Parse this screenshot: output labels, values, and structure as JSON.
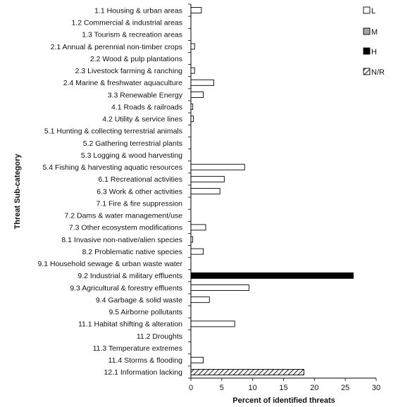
{
  "chart_data": {
    "type": "bar",
    "orientation": "horizontal",
    "xlabel": "Percent of identified threats",
    "ylabel": "Threat Sub-category",
    "xlim": [
      0,
      30
    ],
    "xticks": [
      "0",
      "5",
      "10",
      "15",
      "20",
      "25",
      "30"
    ],
    "grid": false,
    "legend_position": "right",
    "categories": [
      "1.1 Housing & urban areas",
      "1.2 Commercial & industrial areas",
      "1.3 Tourism & recreation areas",
      "2.1 Annual & perennial non-timber crops",
      "2.2 Wood & pulp plantations",
      "2.3 Livestock farming & ranching",
      "2.4 Marine & freshwater aquaculture",
      "3.3 Renewable Energy",
      "4.1 Roads & railroads",
      "4.2 Utility & service lines",
      "5.1 Hunting & collecting terrestrial animals",
      "5.2 Gathering terrestrial plants",
      "5.3 Logging & wood harvesting",
      "5.4 Fishing & harvesting aquatic resources",
      "6.1 Recreational activities",
      "6.3 Work & other activities",
      "7.1 Fire & fire suppression",
      "7.2 Dams & water management/use",
      "7.3 Other ecosystem modifications",
      "8.1 Invasive non-native/alien species",
      "8.2 Problematic native species",
      "9.1 Household sewage & urban waste water",
      "9.2 Industrial & military effluents",
      "9.3 Agricultural & forestry effluents",
      "9.4 Garbage & solid waste",
      "9.5 Airborne pollutants",
      "11.1 Habitat shifting & alteration",
      "11.2 Droughts",
      "11.3 Temperature extremes",
      "11.4 Storms & flooding",
      "12.1 Information lacking"
    ],
    "series": [
      {
        "name": "L",
        "color": "#ffffff",
        "pattern": "none",
        "values": [
          1.7,
          0,
          0,
          0.6,
          0,
          0.6,
          3.7,
          2.0,
          0.3,
          0.4,
          0,
          0,
          0,
          8.7,
          5.4,
          4.7,
          0,
          0,
          2.4,
          0.3,
          2.0,
          0,
          0,
          9.4,
          3.0,
          0,
          7.1,
          0,
          0,
          2.0,
          0
        ]
      },
      {
        "name": "M",
        "color": "#a6a6a6",
        "pattern": "none",
        "values": [
          0,
          0,
          0,
          0,
          0,
          0,
          0,
          0,
          0,
          0,
          0,
          0,
          0,
          0,
          0,
          0,
          0,
          0,
          0,
          0,
          0,
          0,
          0,
          0,
          0,
          0,
          0,
          0,
          0,
          0,
          0
        ]
      },
      {
        "name": "H",
        "color": "#000000",
        "pattern": "none",
        "values": [
          0,
          0,
          0,
          0,
          0,
          0,
          0,
          0,
          0,
          0,
          0,
          0,
          0,
          0,
          0,
          0,
          0,
          0,
          0,
          0,
          0,
          0,
          26.3,
          0,
          0,
          0,
          0,
          0,
          0,
          0,
          0
        ]
      },
      {
        "name": "N/R",
        "color": "#404040",
        "pattern": "diagonal-hatch",
        "values": [
          0,
          0,
          0,
          0,
          0,
          0,
          0,
          0,
          0,
          0,
          0,
          0,
          0,
          0,
          0,
          0,
          0,
          0,
          0,
          0,
          0,
          0,
          0,
          0,
          0,
          0,
          0,
          0,
          0,
          0,
          18.3
        ]
      }
    ]
  }
}
